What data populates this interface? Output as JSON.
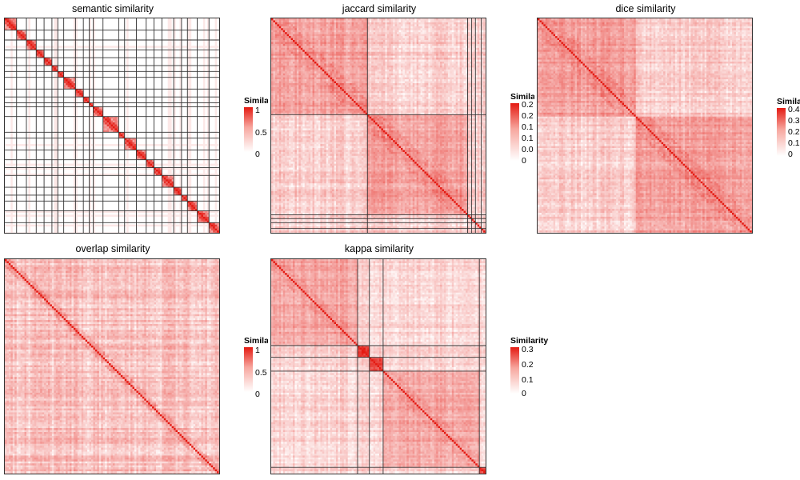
{
  "colors": {
    "low": "#ffffff",
    "high": "#e41a12",
    "frame": "#333333"
  },
  "chart_data": [
    {
      "type": "heatmap",
      "title": "semantic similarity",
      "legend": {
        "title": "Similarity",
        "ticks": [
          "1",
          "0.5",
          "0"
        ],
        "max": 1
      },
      "grid": "cluster-boundaries",
      "dimension": 110,
      "pattern": "sparse",
      "clusters": [
        6,
        5,
        5,
        4,
        4,
        3,
        3,
        6,
        4,
        3,
        2,
        5,
        8,
        3,
        6,
        5,
        4,
        4,
        6,
        4,
        3,
        5,
        6,
        6
      ]
    },
    {
      "type": "heatmap",
      "title": "jaccard similarity",
      "legend": {
        "title": "Similarity",
        "ticks": [
          "0.2",
          "0.2",
          "0.1",
          "0.1",
          "0.0",
          "0"
        ],
        "max": 0.25
      },
      "grid": "cluster-boundaries",
      "dimension": 110,
      "pattern": "dense",
      "clusters": [
        49,
        51,
        2,
        2,
        3,
        3
      ]
    },
    {
      "type": "heatmap",
      "title": "dice similarity",
      "legend": {
        "title": "Similarity",
        "ticks": [
          "0.4",
          "0.3",
          "0.2",
          "0.1",
          "0"
        ],
        "max": 0.4
      },
      "grid": "none",
      "dimension": 110,
      "pattern": "dense",
      "clusters": [
        50,
        60
      ]
    },
    {
      "type": "heatmap",
      "title": "overlap similarity",
      "legend": {
        "title": "Similarity",
        "ticks": [
          "1",
          "0.5",
          "0"
        ],
        "max": 1
      },
      "grid": "none",
      "dimension": 110,
      "pattern": "uniform",
      "clusters": [
        110
      ]
    },
    {
      "type": "heatmap",
      "title": "kappa similarity",
      "legend": {
        "title": "Similarity",
        "ticks": [
          "0.3",
          "0.2",
          "0.1",
          "0"
        ],
        "max": 0.3
      },
      "grid": "cluster-boundaries",
      "dimension": 110,
      "pattern": "kappa",
      "clusters": [
        44,
        6,
        7,
        49,
        4
      ]
    }
  ]
}
